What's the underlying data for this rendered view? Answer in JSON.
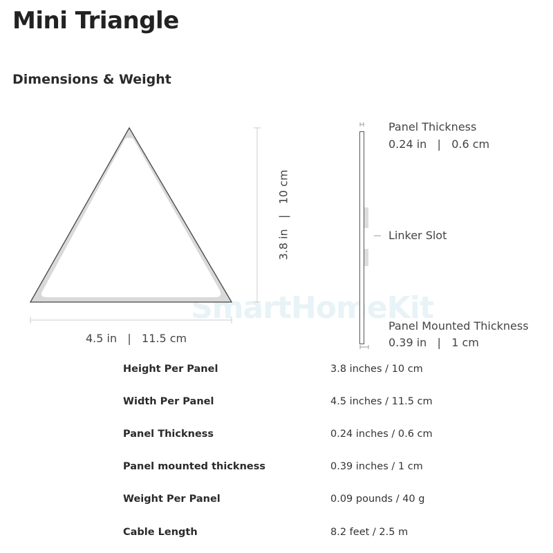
{
  "title": "Mini Triangle",
  "subtitle": "Dimensions & Weight",
  "diagram": {
    "width_label": "4.5 in   |   11.5 cm",
    "height_label": "3.8 in   |   10 cm",
    "panel_thickness_title": "Panel Thickness",
    "panel_thickness_value": "0.24 in   |   0.6 cm",
    "linker_slot": "Linker Slot",
    "mounted_thickness_title": "Panel Mounted Thickness",
    "mounted_thickness_value": "0.39 in   |   1 cm"
  },
  "watermark": "SmartHomeKit",
  "specs": [
    {
      "label": "Height Per Panel",
      "value": "3.8 inches / 10 cm"
    },
    {
      "label": "Width Per Panel",
      "value": "4.5 inches / 11.5 cm"
    },
    {
      "label": "Panel Thickness",
      "value": "0.24 inches / 0.6 cm"
    },
    {
      "label": "Panel mounted thickness",
      "value": "0.39 inches / 1 cm"
    },
    {
      "label": "Weight Per Panel",
      "value": "0.09 pounds / 40 g"
    },
    {
      "label": "Cable Length",
      "value": "8.2 feet / 2.5 m"
    }
  ]
}
